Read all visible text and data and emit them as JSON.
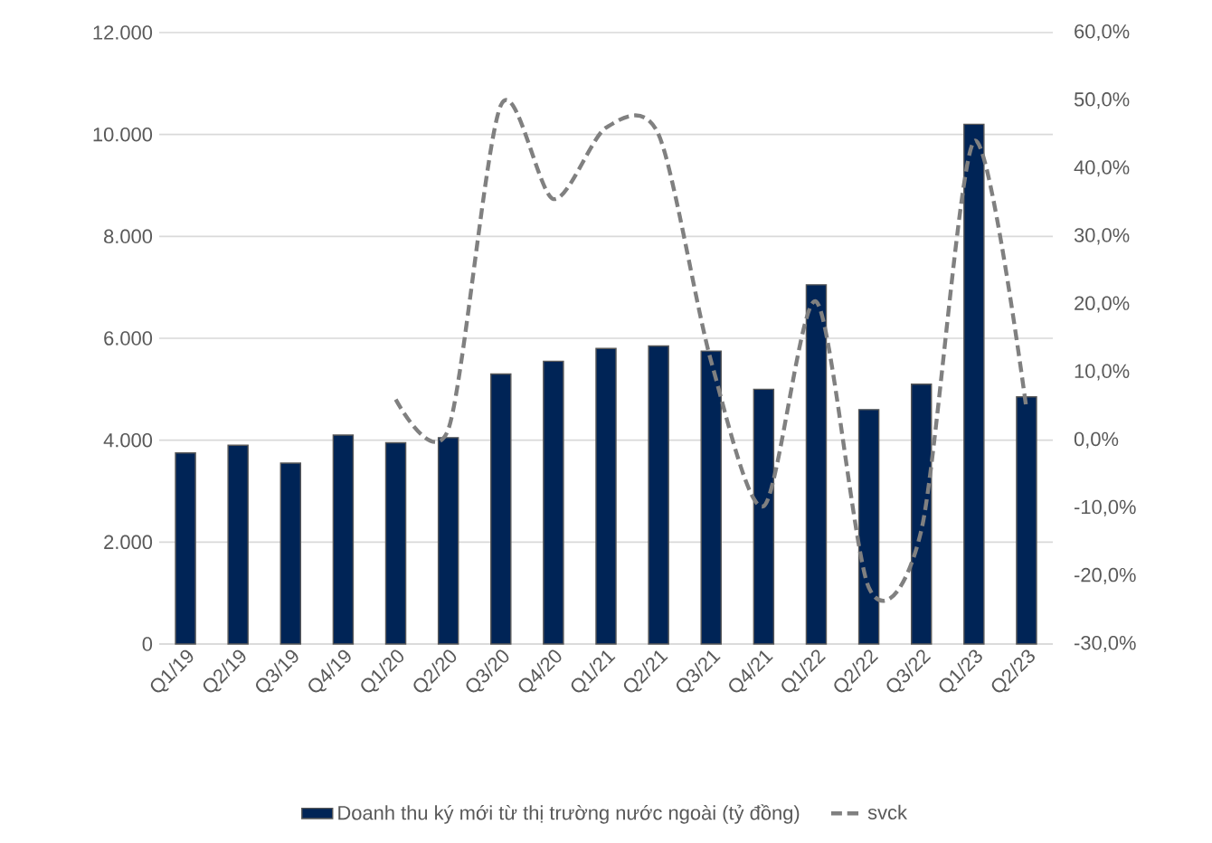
{
  "chart_data": {
    "type": "bar",
    "categories": [
      "Q1/19",
      "Q2/19",
      "Q3/19",
      "Q4/19",
      "Q1/20",
      "Q2/20",
      "Q3/20",
      "Q4/20",
      "Q1/21",
      "Q2/21",
      "Q3/21",
      "Q4/21",
      "Q1/22",
      "Q2/22",
      "Q3/22",
      "Q1/23",
      "Q2/23"
    ],
    "series": [
      {
        "name": "Doanh thu ký mới từ thị trường nước ngoài (tỷ đồng)",
        "color": "#002456",
        "values": [
          3750,
          3900,
          3550,
          4100,
          3950,
          4050,
          5300,
          5550,
          5800,
          5850,
          5750,
          5000,
          7050,
          4600,
          5100,
          10200,
          4850
        ]
      },
      {
        "name": "svck",
        "type": "line",
        "axis": "y2",
        "color": "#808080",
        "line_style": "dashed",
        "values": [
          null,
          null,
          null,
          null,
          6.0,
          1.6,
          49.3,
          35.5,
          46.0,
          45.0,
          11.6,
          -9.7,
          20.4,
          -21.7,
          -13.2,
          44.0,
          4.5
        ]
      }
    ],
    "ylim": [
      0,
      12000
    ],
    "yticks": [
      {
        "value": 0,
        "label": "0"
      },
      {
        "value": 2000,
        "label": "2.000"
      },
      {
        "value": 4000,
        "label": "4.000"
      },
      {
        "value": 6000,
        "label": "6.000"
      },
      {
        "value": 8000,
        "label": "8.000"
      },
      {
        "value": 10000,
        "label": "10.000"
      },
      {
        "value": 12000,
        "label": "12.000"
      }
    ],
    "y2lim": [
      -30,
      60
    ],
    "y2ticks": [
      {
        "value": -30,
        "label": "-30,0%"
      },
      {
        "value": -20,
        "label": "-20,0%"
      },
      {
        "value": -10,
        "label": "-10,0%"
      },
      {
        "value": 0,
        "label": "0,0%"
      },
      {
        "value": 10,
        "label": "10,0%"
      },
      {
        "value": 20,
        "label": "20,0%"
      },
      {
        "value": 30,
        "label": "30,0%"
      },
      {
        "value": 40,
        "label": "40,0%"
      },
      {
        "value": 50,
        "label": "50,0%"
      },
      {
        "value": 60,
        "label": "60,0%"
      }
    ],
    "grid": "y",
    "legend": "bottom"
  }
}
